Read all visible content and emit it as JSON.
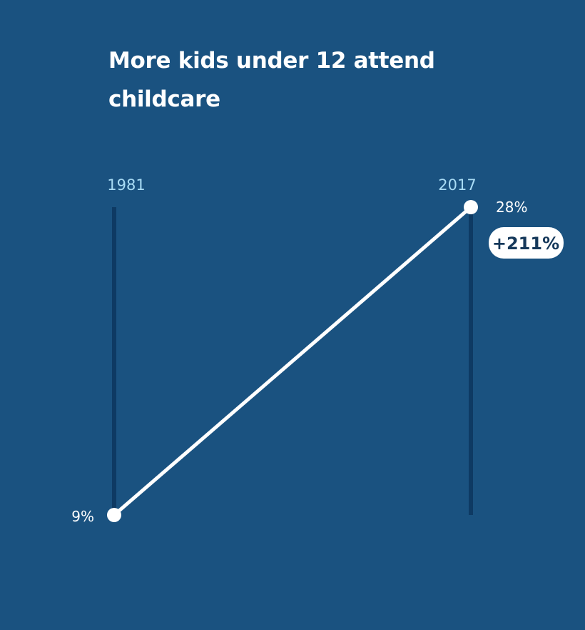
{
  "chart_data": {
    "type": "line",
    "title": "More kids under 12 attend childcare",
    "categories": [
      "1981",
      "2017"
    ],
    "series": [
      {
        "values": [
          9,
          28
        ],
        "labels": [
          "9%",
          "28%"
        ]
      }
    ],
    "annotation": "+211%",
    "ylim": [
      9,
      28
    ],
    "grid": false,
    "colors": {
      "background": "#1a5280",
      "axis": "#0e3a63",
      "line": "#ffffff",
      "year_label": "#a9dcf5",
      "badge_fill": "#ffffff",
      "badge_text": "#15385a"
    }
  }
}
